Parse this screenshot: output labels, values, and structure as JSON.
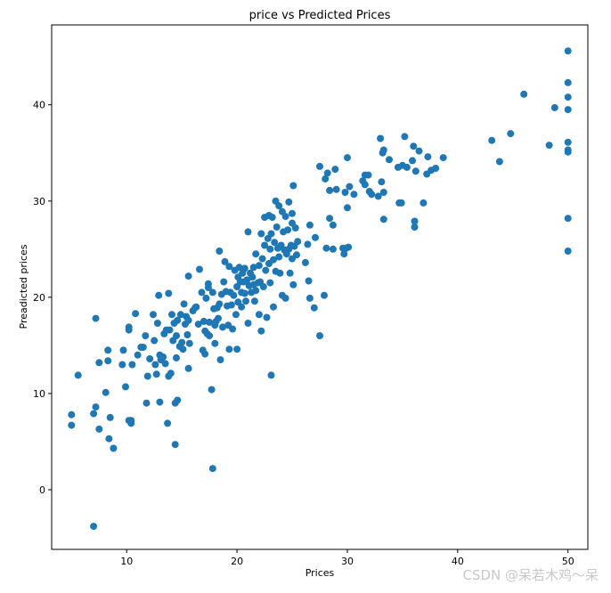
{
  "chart_data": {
    "type": "scatter",
    "title": "price vs Predicted Prices",
    "xlabel": "Prices",
    "ylabel": "Preadicted prices",
    "xlim": [
      3.2,
      51.8
    ],
    "ylim": [
      -6.2,
      48.3
    ],
    "xticks": [
      10,
      20,
      30,
      40,
      50
    ],
    "yticks": [
      0,
      10,
      20,
      30,
      40
    ],
    "grid": false,
    "marker_color": "#1f77b4",
    "points": [
      [
        7.0,
        -3.8
      ],
      [
        5.0,
        7.8
      ],
      [
        5.0,
        6.7
      ],
      [
        5.6,
        11.9
      ],
      [
        7.0,
        7.9
      ],
      [
        7.2,
        8.6
      ],
      [
        7.2,
        17.8
      ],
      [
        7.5,
        6.3
      ],
      [
        7.5,
        13.2
      ],
      [
        8.1,
        10.1
      ],
      [
        8.3,
        13.4
      ],
      [
        8.3,
        14.5
      ],
      [
        8.4,
        5.3
      ],
      [
        8.5,
        7.5
      ],
      [
        8.8,
        4.3
      ],
      [
        9.6,
        13.0
      ],
      [
        9.7,
        14.5
      ],
      [
        9.9,
        10.7
      ],
      [
        10.2,
        16.6
      ],
      [
        10.2,
        7.2
      ],
      [
        10.2,
        16.9
      ],
      [
        10.4,
        7.2
      ],
      [
        10.4,
        6.9
      ],
      [
        10.5,
        13.0
      ],
      [
        10.8,
        18.3
      ],
      [
        11.0,
        14.0
      ],
      [
        11.3,
        14.8
      ],
      [
        11.5,
        14.8
      ],
      [
        11.7,
        16.0
      ],
      [
        11.8,
        9.0
      ],
      [
        11.9,
        11.8
      ],
      [
        12.1,
        13.6
      ],
      [
        12.4,
        18.2
      ],
      [
        12.5,
        15.5
      ],
      [
        12.6,
        13.0
      ],
      [
        12.7,
        12.0
      ],
      [
        12.8,
        17.3
      ],
      [
        12.9,
        20.2
      ],
      [
        13.0,
        9.1
      ],
      [
        13.0,
        14.0
      ],
      [
        13.1,
        13.5
      ],
      [
        13.3,
        13.8
      ],
      [
        13.4,
        16.2
      ],
      [
        13.5,
        13.1
      ],
      [
        13.6,
        16.6
      ],
      [
        13.7,
        6.9
      ],
      [
        13.8,
        20.4
      ],
      [
        13.8,
        11.8
      ],
      [
        13.9,
        16.6
      ],
      [
        14.0,
        12.1
      ],
      [
        14.1,
        18.2
      ],
      [
        14.2,
        15.5
      ],
      [
        14.3,
        17.3
      ],
      [
        14.4,
        4.7
      ],
      [
        14.4,
        9.0
      ],
      [
        14.5,
        16.0
      ],
      [
        14.5,
        13.7
      ],
      [
        14.6,
        17.6
      ],
      [
        14.6,
        9.3
      ],
      [
        14.8,
        14.9
      ],
      [
        14.9,
        18.2
      ],
      [
        15.0,
        15.3
      ],
      [
        15.1,
        14.6
      ],
      [
        15.2,
        19.3
      ],
      [
        15.3,
        17.2
      ],
      [
        15.4,
        18.0
      ],
      [
        15.5,
        16.1
      ],
      [
        15.6,
        12.6
      ],
      [
        15.6,
        17.6
      ],
      [
        15.6,
        22.2
      ],
      [
        15.7,
        15.2
      ],
      [
        16.0,
        18.6
      ],
      [
        16.2,
        18.9
      ],
      [
        16.3,
        19.0
      ],
      [
        16.5,
        17.2
      ],
      [
        16.6,
        22.9
      ],
      [
        16.8,
        20.5
      ],
      [
        16.9,
        14.5
      ],
      [
        17.0,
        17.5
      ],
      [
        17.1,
        16.5
      ],
      [
        17.1,
        14.1
      ],
      [
        17.2,
        19.9
      ],
      [
        17.3,
        16.2
      ],
      [
        17.4,
        21.0
      ],
      [
        17.4,
        21.4
      ],
      [
        17.5,
        17.4
      ],
      [
        17.5,
        16.0
      ],
      [
        17.7,
        10.4
      ],
      [
        17.8,
        2.2
      ],
      [
        17.8,
        20.5
      ],
      [
        17.9,
        18.8
      ],
      [
        18.0,
        17.1
      ],
      [
        18.0,
        15.2
      ],
      [
        18.1,
        17.5
      ],
      [
        18.2,
        18.9
      ],
      [
        18.3,
        17.8
      ],
      [
        18.4,
        19.3
      ],
      [
        18.4,
        24.8
      ],
      [
        18.5,
        13.5
      ],
      [
        18.6,
        20.3
      ],
      [
        18.7,
        16.9
      ],
      [
        18.8,
        21.6
      ],
      [
        18.9,
        23.7
      ],
      [
        19.0,
        20.6
      ],
      [
        19.1,
        19.1
      ],
      [
        19.2,
        17.1
      ],
      [
        19.3,
        23.2
      ],
      [
        19.3,
        14.6
      ],
      [
        19.4,
        20.5
      ],
      [
        19.5,
        19.2
      ],
      [
        19.6,
        16.7
      ],
      [
        19.7,
        20.2
      ],
      [
        19.8,
        22.8
      ],
      [
        19.9,
        18.2
      ],
      [
        20.0,
        21.1
      ],
      [
        20.0,
        14.6
      ],
      [
        20.1,
        22.1
      ],
      [
        20.1,
        19.5
      ],
      [
        20.2,
        23.1
      ],
      [
        20.3,
        21.6
      ],
      [
        20.4,
        20.5
      ],
      [
        20.4,
        19.0
      ],
      [
        20.5,
        22.5
      ],
      [
        20.6,
        21.6
      ],
      [
        20.7,
        20.4
      ],
      [
        20.7,
        23.0
      ],
      [
        20.8,
        19.6
      ],
      [
        20.9,
        21.8
      ],
      [
        21.0,
        17.3
      ],
      [
        21.0,
        26.8
      ],
      [
        21.1,
        21.2
      ],
      [
        21.2,
        22.5
      ],
      [
        21.3,
        20.5
      ],
      [
        21.4,
        22.1
      ],
      [
        21.5,
        21.3
      ],
      [
        21.5,
        23.1
      ],
      [
        21.6,
        19.6
      ],
      [
        21.7,
        20.7
      ],
      [
        21.7,
        24.5
      ],
      [
        21.9,
        21.5
      ],
      [
        22.0,
        18.2
      ],
      [
        22.0,
        23.3
      ],
      [
        22.1,
        21.6
      ],
      [
        22.2,
        26.6
      ],
      [
        22.2,
        16.5
      ],
      [
        22.3,
        24.0
      ],
      [
        22.4,
        21.1
      ],
      [
        22.5,
        25.4
      ],
      [
        22.5,
        28.3
      ],
      [
        22.6,
        22.8
      ],
      [
        22.7,
        17.9
      ],
      [
        22.8,
        26.1
      ],
      [
        22.9,
        23.5
      ],
      [
        22.9,
        28.5
      ],
      [
        23.0,
        25.0
      ],
      [
        23.0,
        21.5
      ],
      [
        23.1,
        11.9
      ],
      [
        23.1,
        26.6
      ],
      [
        23.2,
        28.3
      ],
      [
        23.3,
        23.9
      ],
      [
        23.3,
        19.0
      ],
      [
        23.4,
        25.7
      ],
      [
        23.5,
        30.0
      ],
      [
        23.5,
        22.7
      ],
      [
        23.6,
        27.3
      ],
      [
        23.7,
        25.1
      ],
      [
        23.8,
        24.2
      ],
      [
        23.8,
        29.5
      ],
      [
        23.9,
        22.5
      ],
      [
        24.0,
        25.4
      ],
      [
        24.1,
        28.9
      ],
      [
        24.1,
        20.2
      ],
      [
        24.2,
        26.8
      ],
      [
        24.3,
        24.9
      ],
      [
        24.4,
        28.4
      ],
      [
        24.4,
        19.9
      ],
      [
        24.5,
        24.5
      ],
      [
        24.6,
        27.0
      ],
      [
        24.7,
        25.0
      ],
      [
        24.7,
        29.9
      ],
      [
        24.8,
        22.5
      ],
      [
        24.9,
        25.4
      ],
      [
        25.0,
        28.7
      ],
      [
        25.0,
        24.0
      ],
      [
        25.0,
        27.7
      ],
      [
        25.1,
        31.6
      ],
      [
        25.1,
        21.3
      ],
      [
        25.2,
        25.3
      ],
      [
        25.3,
        27.2
      ],
      [
        25.4,
        24.4
      ],
      [
        25.5,
        25.8
      ],
      [
        26.2,
        23.6
      ],
      [
        26.4,
        25.5
      ],
      [
        26.5,
        21.7
      ],
      [
        26.6,
        27.5
      ],
      [
        26.6,
        19.9
      ],
      [
        27.0,
        18.9
      ],
      [
        27.1,
        26.2
      ],
      [
        27.5,
        33.6
      ],
      [
        27.5,
        16.0
      ],
      [
        27.9,
        20.2
      ],
      [
        28.0,
        32.3
      ],
      [
        28.1,
        25.1
      ],
      [
        28.2,
        32.9
      ],
      [
        28.4,
        31.1
      ],
      [
        28.4,
        28.2
      ],
      [
        28.7,
        27.5
      ],
      [
        28.7,
        25.0
      ],
      [
        28.9,
        33.3
      ],
      [
        29.0,
        31.2
      ],
      [
        29.6,
        25.1
      ],
      [
        29.7,
        24.5
      ],
      [
        29.8,
        30.9
      ],
      [
        29.9,
        25.1
      ],
      [
        30.0,
        29.3
      ],
      [
        30.0,
        34.5
      ],
      [
        30.1,
        25.2
      ],
      [
        30.2,
        31.5
      ],
      [
        30.6,
        30.7
      ],
      [
        31.4,
        32.1
      ],
      [
        31.6,
        31.7
      ],
      [
        31.6,
        32.7
      ],
      [
        31.9,
        32.7
      ],
      [
        32.0,
        31.0
      ],
      [
        32.2,
        30.7
      ],
      [
        32.8,
        30.5
      ],
      [
        33.0,
        36.5
      ],
      [
        33.1,
        32.0
      ],
      [
        33.2,
        35.0
      ],
      [
        33.3,
        28.1
      ],
      [
        33.3,
        30.9
      ],
      [
        33.3,
        35.3
      ],
      [
        33.8,
        34.3
      ],
      [
        34.6,
        33.5
      ],
      [
        34.7,
        29.8
      ],
      [
        34.9,
        29.8
      ],
      [
        35.0,
        33.7
      ],
      [
        35.2,
        36.7
      ],
      [
        35.4,
        33.5
      ],
      [
        35.9,
        34.2
      ],
      [
        36.0,
        35.7
      ],
      [
        36.1,
        27.9
      ],
      [
        36.1,
        27.3
      ],
      [
        36.2,
        33.1
      ],
      [
        36.5,
        35.2
      ],
      [
        36.9,
        29.8
      ],
      [
        37.2,
        32.8
      ],
      [
        37.3,
        34.6
      ],
      [
        37.6,
        33.2
      ],
      [
        38.0,
        33.4
      ],
      [
        38.7,
        34.5
      ],
      [
        43.1,
        36.3
      ],
      [
        43.8,
        34.1
      ],
      [
        44.8,
        37.0
      ],
      [
        46.0,
        41.1
      ],
      [
        48.3,
        35.8
      ],
      [
        48.8,
        39.7
      ],
      [
        50.0,
        45.6
      ],
      [
        50.0,
        42.3
      ],
      [
        50.0,
        40.8
      ],
      [
        50.0,
        39.5
      ],
      [
        50.0,
        36.1
      ],
      [
        50.0,
        35.3
      ],
      [
        50.0,
        35.1
      ],
      [
        50.0,
        28.2
      ],
      [
        50.0,
        24.8
      ]
    ]
  },
  "watermark": "CSDN @呆若木鸡～呆"
}
